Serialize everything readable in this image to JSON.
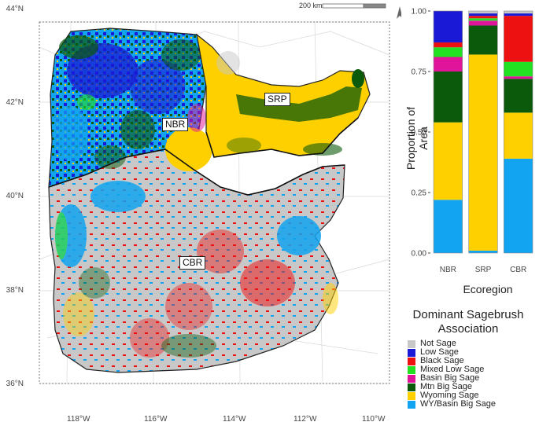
{
  "map": {
    "lat_labels": [
      "44°N",
      "42°N",
      "40°N",
      "38°N",
      "36°N"
    ],
    "lon_labels": [
      "118°W",
      "116°W",
      "114°W",
      "112°W",
      "110°W"
    ],
    "regions": [
      "NBR",
      "SRP",
      "CBR"
    ],
    "scalebar_label": "200 km",
    "north_icon": "north-arrow-icon"
  },
  "legend": {
    "title_line1": "Dominant Sagebrush",
    "title_line2": "Association",
    "items": [
      {
        "label": "Not Sage",
        "color": "#c8c8c8"
      },
      {
        "label": "Low Sage",
        "color": "#1a1ad6"
      },
      {
        "label": "Black Sage",
        "color": "#ee1111"
      },
      {
        "label": "Mixed Low Sage",
        "color": "#22e022"
      },
      {
        "label": "Basin Big Sage",
        "color": "#e0149a"
      },
      {
        "label": "Mtn Big Sage",
        "color": "#0b5a0b"
      },
      {
        "label": "Wyoming Sage",
        "color": "#ffd000"
      },
      {
        "label": "WY/Basin Big Sage",
        "color": "#12a4f0"
      }
    ]
  },
  "chart_data": {
    "type": "bar",
    "stacked": true,
    "categories": [
      "NBR",
      "SRP",
      "CBR"
    ],
    "xlabel": "Ecoregion",
    "ylabel": "Proportion of Area",
    "ylim": [
      0,
      1
    ],
    "yticks": [
      "0.00",
      "0.25",
      "0.50",
      "0.75",
      "1.00"
    ],
    "series": [
      {
        "name": "WY/Basin Big Sage",
        "values": [
          0.22,
          0.01,
          0.39
        ]
      },
      {
        "name": "Wyoming Sage",
        "values": [
          0.32,
          0.81,
          0.19
        ]
      },
      {
        "name": "Mtn Big Sage",
        "values": [
          0.21,
          0.12,
          0.14
        ]
      },
      {
        "name": "Basin Big Sage",
        "values": [
          0.06,
          0.02,
          0.01
        ]
      },
      {
        "name": "Mixed Low Sage",
        "values": [
          0.04,
          0.01,
          0.06
        ]
      },
      {
        "name": "Black Sage",
        "values": [
          0.02,
          0.01,
          0.19
        ]
      },
      {
        "name": "Low Sage",
        "values": [
          0.13,
          0.01,
          0.01
        ]
      },
      {
        "name": "Not Sage",
        "values": [
          0.0,
          0.01,
          0.01
        ]
      }
    ]
  }
}
